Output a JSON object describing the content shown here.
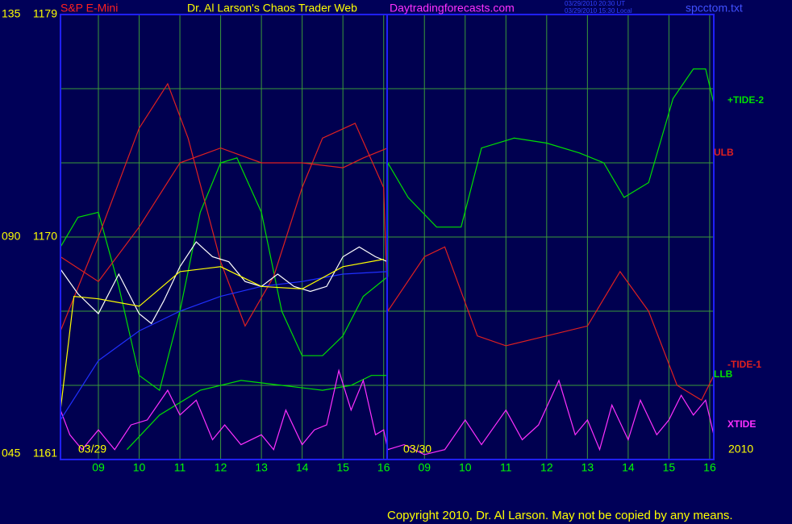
{
  "chart_data": {
    "type": "line",
    "instrument": "S&P E-Mini",
    "title": "Dr. Al Larson's Chaos Trader Web",
    "site": "Daytradingforecasts.com",
    "stamp_ut": "03/29/2010 20:30 UT",
    "stamp_local": "03/29/2010 15:30 Local",
    "file": "spcctom.txt",
    "date_labels": [
      "03/29",
      "03/30"
    ],
    "year": "2010",
    "copyright": "Copyright 2010, Dr. Al Larson. May not be copied by any means.",
    "xlim": [
      8.07,
      24.1
    ],
    "xticks": [
      {
        "value": 9,
        "label": "09"
      },
      10,
      11,
      12,
      13,
      14,
      15,
      16,
      {
        "value": 17,
        "label": "09"
      },
      {
        "value": 18,
        "label": "10"
      },
      {
        "value": 19,
        "label": "11"
      },
      {
        "value": 20,
        "label": "12"
      },
      {
        "value": 21,
        "label": "13"
      },
      {
        "value": 22,
        "label": "14"
      },
      {
        "value": 23,
        "label": "15"
      },
      {
        "value": 24,
        "label": "16"
      }
    ],
    "ylim": [
      1161,
      1179
    ],
    "yticks": [
      1161,
      1170,
      1179
    ],
    "ygrid": [
      1164,
      1167,
      1170,
      1173,
      1176
    ],
    "y2lim": [
      45,
      135
    ],
    "y2ticks": [
      {
        "value": 45,
        "label": "045"
      },
      {
        "value": 90,
        "label": "090"
      },
      {
        "value": 135,
        "label": "135"
      }
    ],
    "grid": true,
    "series": [
      {
        "name": "+TIDE-2",
        "color": "#00e000",
        "axis": "y2",
        "x": [
          8.07,
          8.5,
          9,
          9.5,
          10,
          10.5,
          11,
          11.5,
          12,
          12.4,
          13,
          13.5,
          14,
          14.5,
          15,
          15.5,
          16.1,
          16.1,
          16.6,
          17.3,
          17.9,
          18.4,
          19.2,
          20,
          20.8,
          21.4,
          21.9,
          22.5,
          23.1,
          23.6,
          23.9,
          24.1
        ],
        "values": [
          88,
          94,
          95,
          80,
          62,
          59,
          75,
          95,
          105,
          106,
          95,
          75,
          66,
          66,
          70,
          78,
          82,
          105,
          98,
          92,
          92,
          108,
          110,
          109,
          107,
          105,
          98,
          101,
          118,
          124,
          124,
          117
        ]
      },
      {
        "name": "ULB",
        "color": "#e02020",
        "axis": "y2",
        "x": [
          8.07,
          9,
          10,
          11,
          12,
          13,
          14,
          15,
          15.5,
          16.1
        ],
        "values": [
          86,
          81,
          92,
          105,
          108,
          105,
          105,
          104,
          106,
          108
        ]
      },
      {
        "name": "-TIDE-1",
        "color": "#e02020",
        "axis": "y2",
        "x": [
          8.07,
          9,
          10,
          10.7,
          11.2,
          12,
          12.6,
          13.3,
          14,
          14.5,
          15.3,
          16,
          16.1,
          17,
          17.5,
          18.3,
          19,
          20,
          21,
          21.8,
          22.5,
          23.2,
          23.8,
          24.1
        ],
        "values": [
          71,
          90,
          112,
          121,
          110,
          85,
          72,
          82,
          100,
          110,
          113,
          100,
          75,
          86,
          88,
          70,
          68,
          70,
          72,
          83,
          75,
          60,
          57,
          62
        ]
      },
      {
        "name": "LLB",
        "color": "#00e000",
        "axis": "y2",
        "x": [
          9.7,
          10.5,
          11.5,
          12.5,
          13.5,
          14.5,
          15.2,
          15.7,
          16.1
        ],
        "values": [
          47,
          54,
          59,
          61,
          60,
          59,
          60,
          62,
          62
        ]
      },
      {
        "name": "XTIDE",
        "color": "#ff30ff",
        "axis": "y2",
        "x": [
          8.07,
          8.3,
          8.6,
          9,
          9.4,
          9.8,
          10.2,
          10.7,
          11,
          11.4,
          11.8,
          12.1,
          12.5,
          13,
          13.3,
          13.6,
          14,
          14.3,
          14.6,
          14.9,
          15.2,
          15.5,
          15.8,
          16,
          16.1,
          16.5,
          17,
          17.5,
          18,
          18.4,
          19,
          19.4,
          19.8,
          20.3,
          20.7,
          21,
          21.3,
          21.6,
          22,
          22.3,
          22.7,
          23,
          23.3,
          23.6,
          23.9,
          24.1
        ],
        "values": [
          55,
          50,
          47,
          51,
          47,
          52,
          53,
          59,
          54,
          57,
          49,
          52,
          48,
          50,
          47,
          55,
          48,
          51,
          52,
          63,
          55,
          61,
          50,
          51,
          47,
          48,
          46,
          47,
          53,
          48,
          55,
          49,
          52,
          61,
          50,
          53,
          47,
          56,
          49,
          57,
          50,
          53,
          58,
          54,
          57,
          50
        ]
      },
      {
        "color": "#2030ff",
        "x": [
          8.07,
          9,
          10,
          11,
          12,
          13,
          14,
          15,
          16.1
        ],
        "values": [
          1162.6,
          1165,
          1166.2,
          1167,
          1167.6,
          1168,
          1168.2,
          1168.5,
          1168.6
        ]
      },
      {
        "color": "#ffffff",
        "x": [
          8.07,
          8.5,
          9,
          9.5,
          10,
          10.3,
          10.6,
          11,
          11.4,
          11.8,
          12.2,
          12.6,
          13,
          13.4,
          13.8,
          14.2,
          14.6,
          15,
          15.4,
          15.8,
          16.1
        ],
        "values": [
          1168.7,
          1167.7,
          1166.9,
          1168.5,
          1166.9,
          1166.5,
          1167.4,
          1168.8,
          1169.8,
          1169.2,
          1169,
          1168.2,
          1168,
          1168.5,
          1168,
          1167.8,
          1168,
          1169.2,
          1169.6,
          1169.2,
          1169
        ]
      },
      {
        "color": "#ffff00",
        "x": [
          8.07,
          8.4,
          9,
          10,
          11,
          12,
          13,
          14,
          15,
          16
        ],
        "values": [
          1163,
          1167.6,
          1167.5,
          1167.2,
          1168.6,
          1168.8,
          1168,
          1167.9,
          1168.8,
          1169.1
        ]
      }
    ]
  }
}
